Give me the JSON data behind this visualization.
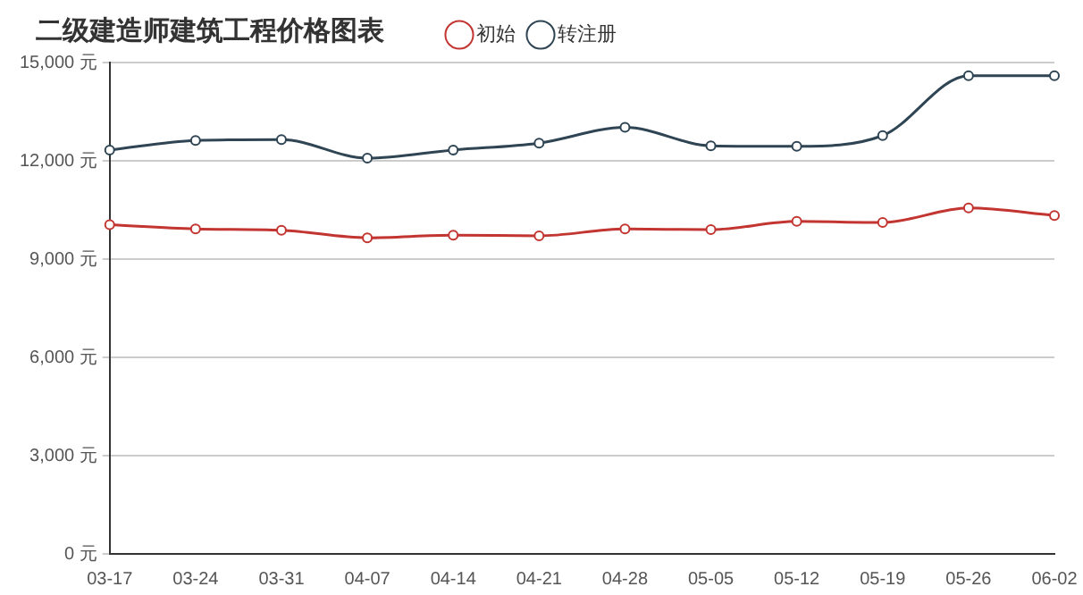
{
  "chart_data": {
    "type": "line",
    "title": "二级建造师建筑工程价格图表",
    "categories": [
      "03-17",
      "03-24",
      "03-31",
      "04-07",
      "04-14",
      "04-21",
      "04-28",
      "05-05",
      "05-12",
      "05-19",
      "05-26",
      "06-02"
    ],
    "series": [
      {
        "name": "初始",
        "color": "#c23531",
        "values": [
          10050,
          9920,
          9880,
          9650,
          9730,
          9710,
          9920,
          9900,
          10150,
          10120,
          10560,
          10330
        ]
      },
      {
        "name": "转注册",
        "color": "#2f4554",
        "values": [
          12330,
          12620,
          12650,
          12080,
          12330,
          12540,
          13020,
          12460,
          12440,
          12770,
          14600,
          14600
        ]
      }
    ],
    "ylim": [
      0,
      15000
    ],
    "yticks": [
      {
        "value": 0,
        "label": "0 元"
      },
      {
        "value": 3000,
        "label": "3,000 元"
      },
      {
        "value": 6000,
        "label": "6,000 元"
      },
      {
        "value": 9000,
        "label": "9,000 元"
      },
      {
        "value": 12000,
        "label": "12,000 元"
      },
      {
        "value": 15000,
        "label": "15,000 元"
      }
    ],
    "grid": "y",
    "legend": "top",
    "marker": "circle",
    "line_style": "solid"
  }
}
